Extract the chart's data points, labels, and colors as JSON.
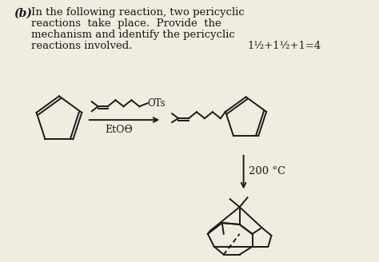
{
  "bg_color": "#f0ece0",
  "text_color": "#1a1a1a",
  "score_text": "1½+1½+1=4",
  "reagent_label": "EtOΘ",
  "condition_label": "200 °C",
  "ots_label": "OTs"
}
